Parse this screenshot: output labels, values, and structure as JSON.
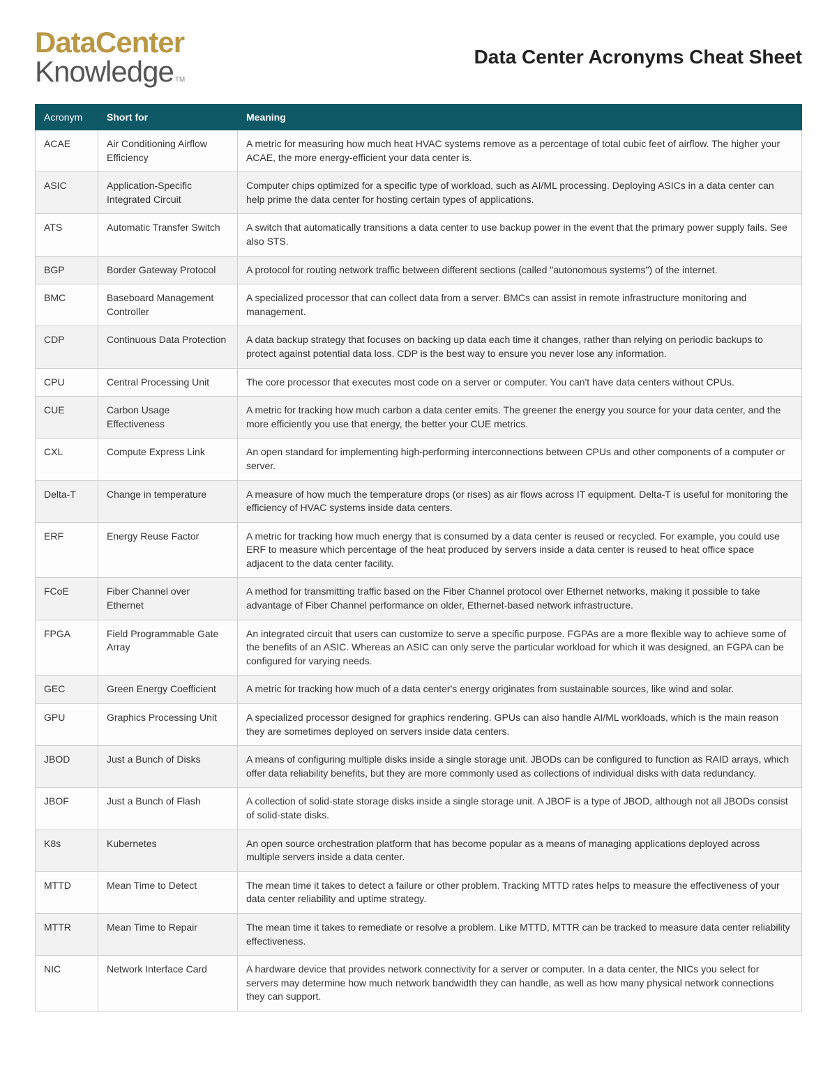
{
  "logo": {
    "line1": "DataCenter",
    "line2": "Knowledge",
    "tm": "TM"
  },
  "page_title": "Data Center Acronyms Cheat Sheet",
  "table": {
    "columns": [
      "Acronym",
      "Short for",
      "Meaning"
    ],
    "header_bg": "#0e5866",
    "header_fg": "#ffffff",
    "border_color": "#cccccc",
    "row_alt_bg": "#f2f2f2",
    "rows": [
      {
        "acronym": "ACAE",
        "short": "Air Conditioning Airflow Efficiency",
        "meaning": "A metric for measuring how much heat HVAC systems remove as a percentage of total cubic feet of airflow. The higher your ACAE, the more energy-efficient your data center is."
      },
      {
        "acronym": "ASIC",
        "short": "Application-Specific Integrated Circuit",
        "meaning": "Computer chips optimized for a specific type of workload, such as AI/ML processing. Deploying ASICs in a data center can help prime the data center for hosting certain types of applications."
      },
      {
        "acronym": "ATS",
        "short": "Automatic Transfer Switch",
        "meaning": "A switch that automatically transitions a data center to use backup power in the event that the primary power supply fails. See also STS."
      },
      {
        "acronym": "BGP",
        "short": "Border Gateway Protocol",
        "meaning": "A protocol for routing network traffic between different sections (called \"autonomous systems\") of the internet."
      },
      {
        "acronym": "BMC",
        "short": "Baseboard Management Controller",
        "meaning": "A specialized processor that can collect data from a server. BMCs can assist in remote infrastructure monitoring and management."
      },
      {
        "acronym": "CDP",
        "short": "Continuous Data Protection",
        "meaning": "A data backup strategy that focuses on backing up data each time it changes, rather than relying on periodic backups to protect against potential data loss. CDP is the best way to ensure you never lose any information."
      },
      {
        "acronym": "CPU",
        "short": "Central Processing Unit",
        "meaning": "The core processor that executes most code on a server or computer. You can't have data centers without CPUs."
      },
      {
        "acronym": "CUE",
        "short": "Carbon Usage Effectiveness",
        "meaning": "A metric for tracking how much carbon a data center emits. The greener the energy you source for your data center, and the more efficiently you use that energy, the better your CUE metrics."
      },
      {
        "acronym": "CXL",
        "short": "Compute Express Link",
        "meaning": "An open standard for implementing high-performing interconnections between CPUs and other components of a computer or server."
      },
      {
        "acronym": "Delta-T",
        "short": "Change in temperature",
        "meaning": "A measure of how much the temperature drops (or rises) as air flows across IT equipment. Delta-T is useful for monitoring the efficiency of HVAC systems inside data centers."
      },
      {
        "acronym": "ERF",
        "short": "Energy Reuse Factor",
        "meaning": "A metric for tracking how much energy that is consumed by a data center is reused or recycled. For example, you could use ERF to measure which percentage of the heat produced by servers inside a data center is reused to heat office space adjacent to the data center facility."
      },
      {
        "acronym": "FCoE",
        "short": "Fiber Channel over Ethernet",
        "meaning": "A method for transmitting traffic based on the Fiber Channel protocol over Ethernet networks, making it possible to take advantage of Fiber Channel performance on older, Ethernet-based network infrastructure."
      },
      {
        "acronym": "FPGA",
        "short": "Field Programmable Gate Array",
        "meaning": "An integrated circuit that users can customize to serve a specific purpose. FGPAs are a more flexible way to achieve some of the benefits of an ASIC. Whereas an ASIC can only serve the particular workload for which it was designed, an FGPA can be configured for varying needs."
      },
      {
        "acronym": "GEC",
        "short": "Green Energy Coefficient",
        "meaning": "A metric for tracking how much of a data center's energy originates from sustainable sources, like wind and solar."
      },
      {
        "acronym": "GPU",
        "short": "Graphics Processing Unit",
        "meaning": "A specialized processor designed for graphics rendering. GPUs can also handle AI/ML workloads, which is the main reason they are sometimes deployed on servers inside data centers."
      },
      {
        "acronym": "JBOD",
        "short": "Just a Bunch of Disks",
        "meaning": "A means of configuring multiple disks inside a single storage unit. JBODs can be configured to function as RAID arrays, which offer data reliability benefits, but they are more commonly used as collections of individual disks with data redundancy."
      },
      {
        "acronym": "JBOF",
        "short": "Just a Bunch of Flash",
        "meaning": "A collection of solid-state storage disks inside a single storage unit. A JBOF is a type of JBOD, although not all JBODs consist of solid-state disks."
      },
      {
        "acronym": "K8s",
        "short": "Kubernetes",
        "meaning": "An open source orchestration platform that has become popular as a means of managing applications deployed across multiple servers inside a data center."
      },
      {
        "acronym": "MTTD",
        "short": "Mean Time to Detect",
        "meaning": "The mean time it takes to detect a failure or other problem. Tracking MTTD rates helps to measure the effectiveness of your data center reliability and uptime strategy."
      },
      {
        "acronym": "MTTR",
        "short": "Mean Time to Repair",
        "meaning": "The mean time it takes to remediate or resolve a problem. Like MTTD, MTTR can be tracked to measure data center reliability effectiveness."
      },
      {
        "acronym": "NIC",
        "short": "Network Interface Card",
        "meaning": "A hardware device that provides network connectivity for a server or computer. In a data center, the NICs you select for servers may determine how much network bandwidth they can handle, as well as how many physical network connections they can support."
      }
    ]
  }
}
